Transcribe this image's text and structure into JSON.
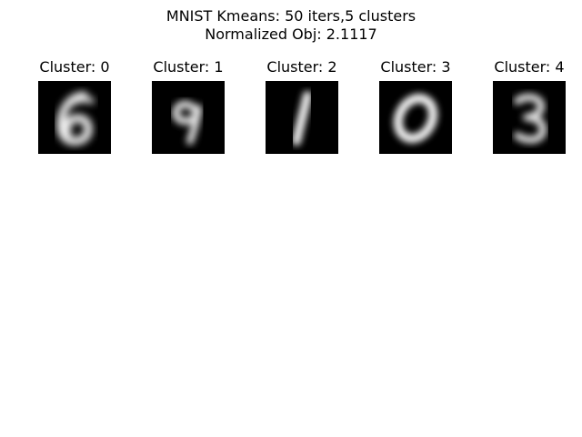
{
  "chart_data": {
    "type": "image_grid",
    "title_line1": "MNIST Kmeans: 50 iters,5 clusters",
    "title_line2": "Normalized Obj: 2.1117",
    "colormap": "gray",
    "background_color": "#000000",
    "foreground_color": "#ffffff",
    "panels": [
      {
        "title": "Cluster: 0",
        "digit": "6"
      },
      {
        "title": "Cluster: 1",
        "digit": "9"
      },
      {
        "title": "Cluster: 2",
        "digit": "1"
      },
      {
        "title": "Cluster: 3",
        "digit": "0"
      },
      {
        "title": "Cluster: 4",
        "digit": "3"
      }
    ]
  }
}
